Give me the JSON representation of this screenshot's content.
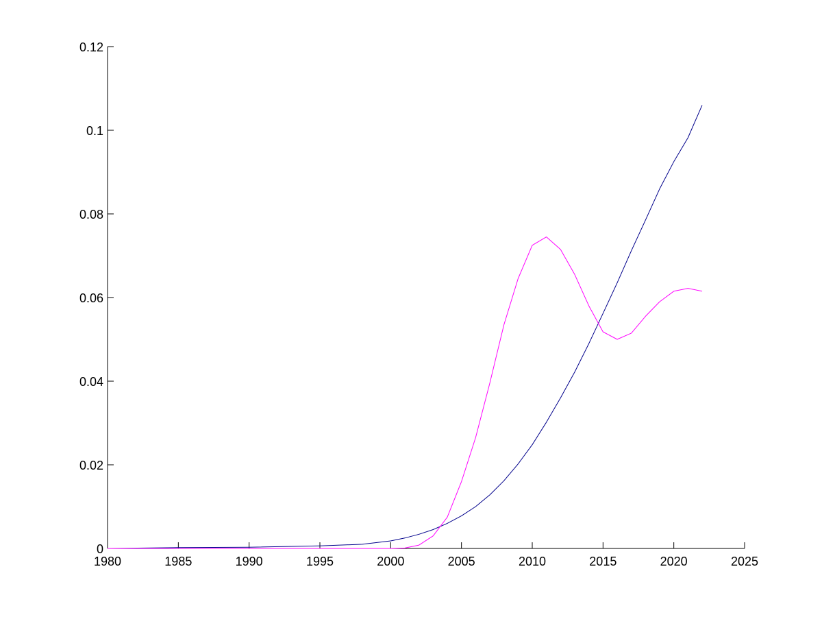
{
  "chart_data": {
    "type": "line",
    "title": "",
    "xlabel": "",
    "ylabel": "",
    "xlim": [
      1980,
      2025
    ],
    "ylim": [
      0,
      0.12
    ],
    "xticks": [
      1980,
      1985,
      1990,
      1995,
      2000,
      2005,
      2010,
      2015,
      2020,
      2025
    ],
    "xtick_labels": [
      "1980",
      "1985",
      "1990",
      "1995",
      "2000",
      "2005",
      "2010",
      "2015",
      "2020",
      "2025"
    ],
    "yticks": [
      0,
      0.02,
      0.04,
      0.06,
      0.08,
      0.1,
      0.12
    ],
    "ytick_labels": [
      "0",
      "0.02",
      "0.04",
      "0.06",
      "0.08",
      "0.1",
      "0.12"
    ],
    "grid": false,
    "legend": "none",
    "series": [
      {
        "color": "#00008b",
        "x": [
          1980,
          1985,
          1990,
          1995,
          1998,
          2000,
          2001,
          2002,
          2003,
          2004,
          2005,
          2006,
          2007,
          2008,
          2009,
          2010,
          2011,
          2012,
          2013,
          2014,
          2015,
          2016,
          2017,
          2018,
          2019,
          2020,
          2021,
          2022
        ],
        "y": [
          0.0,
          0.0002,
          0.0003,
          0.0006,
          0.001,
          0.0018,
          0.0025,
          0.0034,
          0.0045,
          0.006,
          0.0078,
          0.01,
          0.0128,
          0.0162,
          0.0202,
          0.0248,
          0.0302,
          0.036,
          0.0422,
          0.049,
          0.0562,
          0.0635,
          0.0712,
          0.0785,
          0.086,
          0.0925,
          0.0982,
          0.106
        ]
      },
      {
        "color": "#ff00ff",
        "x": [
          1980,
          1985,
          1990,
          1995,
          2000,
          2001,
          2002,
          2003,
          2004,
          2005,
          2006,
          2007,
          2008,
          2009,
          2010,
          2011,
          2012,
          2013,
          2014,
          2015,
          2016,
          2017,
          2018,
          2019,
          2020,
          2021,
          2022
        ],
        "y": [
          0.0,
          0.0,
          0.0,
          0.0,
          0.0,
          0.0001,
          0.0008,
          0.003,
          0.0075,
          0.016,
          0.0265,
          0.0395,
          0.0535,
          0.0645,
          0.0725,
          0.0745,
          0.0715,
          0.0655,
          0.058,
          0.0518,
          0.05,
          0.0515,
          0.0555,
          0.059,
          0.0615,
          0.0622,
          0.0615
        ]
      }
    ]
  }
}
